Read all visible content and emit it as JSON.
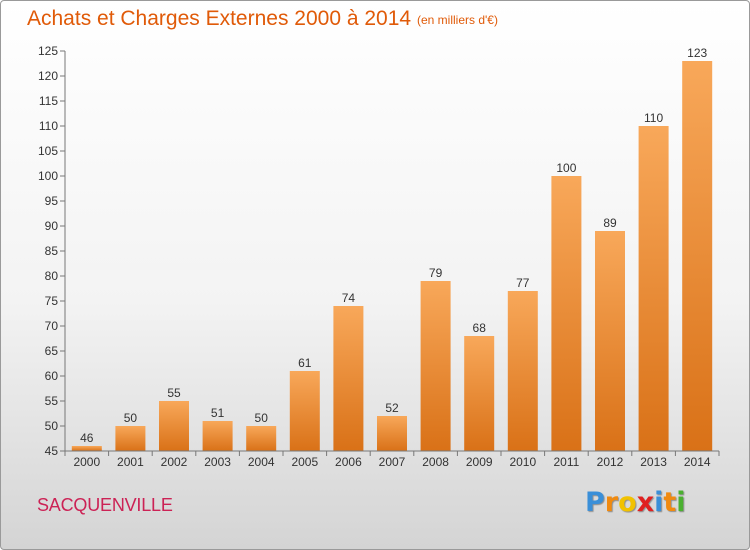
{
  "header": {
    "title": "Achats et Charges Externes 2000 à 2014",
    "subtitle": "(en milliers d'€)"
  },
  "footer": {
    "commune": "SACQUENVILLE",
    "logo_letters": [
      "P",
      "r",
      "o",
      "x",
      "i",
      "t",
      "i"
    ],
    "logo_colors": [
      "#3a8fd8",
      "#f08a10",
      "#f2c200",
      "#e02020",
      "#3a8fd8",
      "#f08a10",
      "#4ab030"
    ]
  },
  "colors": {
    "bar_light": "#f8a85a",
    "bar_dark": "#d97117",
    "axis": "#777777",
    "text": "#333333"
  },
  "chart_data": {
    "type": "bar",
    "title": "Achats et Charges Externes 2000 à 2014",
    "subtitle": "(en milliers d'€)",
    "categories": [
      "2000",
      "2001",
      "2002",
      "2003",
      "2004",
      "2005",
      "2006",
      "2007",
      "2008",
      "2009",
      "2010",
      "2011",
      "2012",
      "2013",
      "2014"
    ],
    "values": [
      46,
      50,
      55,
      51,
      50,
      61,
      74,
      52,
      79,
      68,
      77,
      100,
      89,
      110,
      123
    ],
    "data_labels": [
      "46",
      "50",
      "55",
      "51",
      "50",
      "61",
      "74",
      "52",
      "79",
      "68",
      "77",
      "100",
      "89",
      "110",
      "123"
    ],
    "ylim": [
      45,
      125
    ],
    "yticks": [
      45,
      50,
      55,
      60,
      65,
      70,
      75,
      80,
      85,
      90,
      95,
      100,
      105,
      110,
      115,
      120,
      125
    ],
    "xlabel": "",
    "ylabel": "",
    "grid": false,
    "legend": "none"
  }
}
